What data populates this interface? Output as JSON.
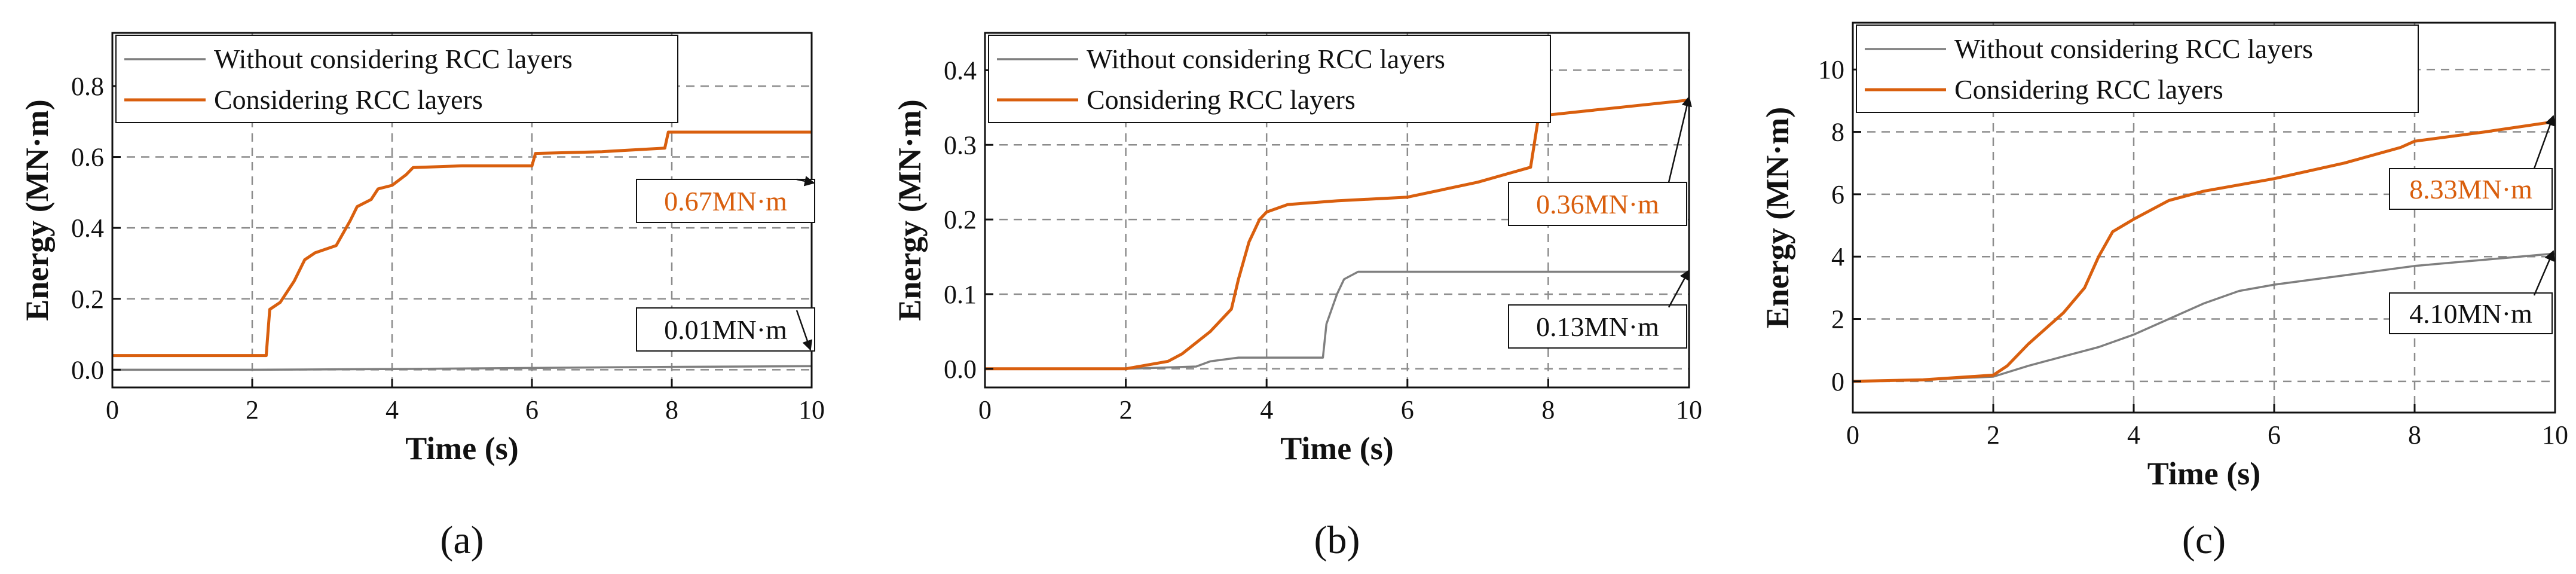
{
  "colors": {
    "gray": "#7f7f7f",
    "orange": "#d95f0e",
    "grid": "#8c8c8c",
    "text": "#111111"
  },
  "legend": {
    "without": "Without considering RCC layers",
    "with": "Considering RCC layers"
  },
  "chart_data": [
    {
      "type": "line",
      "panel_label": "(a)",
      "xlabel": "Time (s)",
      "ylabel": "Energy (MN·m)",
      "xlim": [
        0,
        10
      ],
      "ylim": [
        -0.05,
        0.95
      ],
      "xticks": [
        0,
        2,
        4,
        6,
        8,
        10
      ],
      "xtick_labels": [
        "0",
        "2",
        "4",
        "6",
        "8",
        "10"
      ],
      "yticks": [
        0.0,
        0.2,
        0.4,
        0.6,
        0.8
      ],
      "ytick_labels": [
        "0.0",
        "0.2",
        "0.4",
        "0.6",
        "0.8"
      ],
      "series": [
        {
          "name": "Without considering RCC layers",
          "color_key": "gray",
          "x": [
            0,
            2,
            4,
            6,
            8,
            10
          ],
          "y": [
            0.0,
            0.0,
            0.002,
            0.005,
            0.008,
            0.01
          ]
        },
        {
          "name": "Considering RCC layers",
          "color_key": "orange",
          "x": [
            0,
            2.2,
            2.25,
            2.4,
            2.6,
            2.75,
            2.9,
            3.2,
            3.4,
            3.5,
            3.7,
            3.8,
            4.0,
            4.2,
            4.3,
            5.0,
            6.0,
            6.05,
            7.0,
            7.9,
            7.95,
            10.0
          ],
          "y": [
            0.04,
            0.04,
            0.17,
            0.19,
            0.25,
            0.31,
            0.33,
            0.35,
            0.42,
            0.46,
            0.48,
            0.51,
            0.52,
            0.55,
            0.57,
            0.575,
            0.575,
            0.61,
            0.615,
            0.625,
            0.67,
            0.67
          ]
        }
      ],
      "annotations": [
        {
          "text": "0.67MN·m",
          "color_key": "orange",
          "target_x": 10,
          "target_y": 0.67
        },
        {
          "text": "0.01MN·m",
          "color_key": "text",
          "target_x": 10,
          "target_y": 0.0
        }
      ]
    },
    {
      "type": "line",
      "panel_label": "(b)",
      "xlabel": "Time (s)",
      "ylabel": "Energy (MN·m)",
      "xlim": [
        0,
        10
      ],
      "ylim": [
        -0.025,
        0.45
      ],
      "xticks": [
        0,
        2,
        4,
        6,
        8,
        10
      ],
      "xtick_labels": [
        "0",
        "2",
        "4",
        "6",
        "8",
        "10"
      ],
      "yticks": [
        0.0,
        0.1,
        0.2,
        0.3,
        0.4
      ],
      "ytick_labels": [
        "0.0",
        "0.1",
        "0.2",
        "0.3",
        "0.4"
      ],
      "series": [
        {
          "name": "Without considering RCC layers",
          "color_key": "gray",
          "x": [
            0,
            2.0,
            3.0,
            3.2,
            3.6,
            4.8,
            4.85,
            5.0,
            5.1,
            5.3,
            10.0
          ],
          "y": [
            0.0,
            0.0,
            0.003,
            0.01,
            0.015,
            0.015,
            0.06,
            0.1,
            0.12,
            0.13,
            0.13
          ]
        },
        {
          "name": "Considering RCC layers",
          "color_key": "orange",
          "x": [
            0,
            2.0,
            2.6,
            2.8,
            3.2,
            3.5,
            3.6,
            3.75,
            3.9,
            4.0,
            4.3,
            5.0,
            6.0,
            7.0,
            7.75,
            7.85,
            8.0,
            9.0,
            10.0
          ],
          "y": [
            0.0,
            0.0,
            0.01,
            0.02,
            0.05,
            0.08,
            0.12,
            0.17,
            0.2,
            0.21,
            0.22,
            0.225,
            0.23,
            0.25,
            0.27,
            0.33,
            0.34,
            0.35,
            0.36
          ]
        }
      ],
      "annotations": [
        {
          "text": "0.36MN·m",
          "color_key": "orange",
          "target_x": 10,
          "target_y": 0.36
        },
        {
          "text": "0.13MN·m",
          "color_key": "text",
          "target_x": 10,
          "target_y": 0.13
        }
      ]
    },
    {
      "type": "line",
      "panel_label": "(c)",
      "xlabel": "Time (s)",
      "ylabel": "Energy (MN·m)",
      "xlim": [
        0,
        10
      ],
      "ylim": [
        -1,
        11.5
      ],
      "xticks": [
        0,
        2,
        4,
        6,
        8,
        10
      ],
      "xtick_labels": [
        "0",
        "2",
        "4",
        "6",
        "8",
        "10"
      ],
      "yticks": [
        0,
        2,
        4,
        6,
        8,
        10
      ],
      "ytick_labels": [
        "0",
        "2",
        "4",
        "6",
        "8",
        "10"
      ],
      "series": [
        {
          "name": "Without considering RCC layers",
          "color_key": "gray",
          "x": [
            0,
            1.0,
            2.0,
            2.5,
            3.0,
            3.5,
            4.0,
            4.5,
            5.0,
            5.5,
            6.0,
            7.0,
            8.0,
            9.0,
            10.0
          ],
          "y": [
            0.0,
            0.05,
            0.15,
            0.5,
            0.8,
            1.1,
            1.5,
            2.0,
            2.5,
            2.9,
            3.1,
            3.4,
            3.7,
            3.9,
            4.1
          ]
        },
        {
          "name": "Considering RCC layers",
          "color_key": "orange",
          "x": [
            0,
            1.0,
            2.0,
            2.2,
            2.5,
            3.0,
            3.3,
            3.5,
            3.7,
            4.0,
            4.5,
            5.0,
            6.0,
            7.0,
            7.8,
            8.0,
            9.0,
            10.0
          ],
          "y": [
            0.0,
            0.05,
            0.2,
            0.5,
            1.2,
            2.2,
            3.0,
            4.0,
            4.8,
            5.2,
            5.8,
            6.1,
            6.5,
            7.0,
            7.5,
            7.7,
            8.0,
            8.33
          ]
        }
      ],
      "annotations": [
        {
          "text": "8.33MN·m",
          "color_key": "orange",
          "target_x": 10,
          "target_y": 8.33
        },
        {
          "text": "4.10MN·m",
          "color_key": "text",
          "target_x": 10,
          "target_y": 4.1
        }
      ]
    }
  ]
}
